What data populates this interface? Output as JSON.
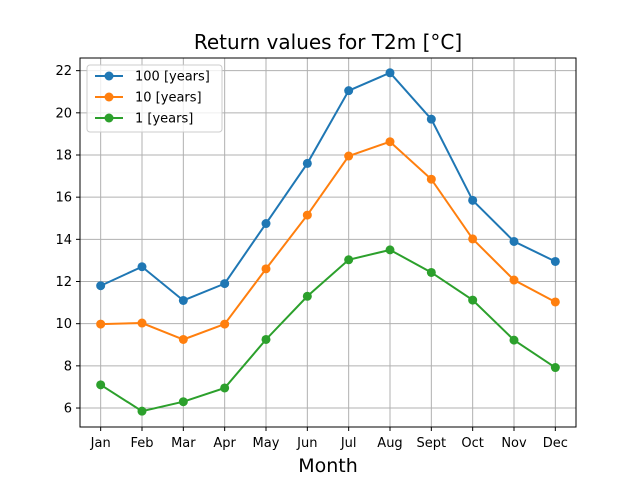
{
  "chart_data": {
    "type": "line",
    "title": "Return values for T2m [°C]",
    "xlabel": "Month",
    "ylabel": "",
    "categories": [
      "Jan",
      "Feb",
      "Mar",
      "Apr",
      "May",
      "Jun",
      "Jul",
      "Aug",
      "Sept",
      "Oct",
      "Nov",
      "Dec"
    ],
    "ylim": [
      5.1,
      22.6
    ],
    "yticks": [
      6,
      8,
      10,
      12,
      14,
      16,
      18,
      20,
      22
    ],
    "grid": true,
    "legend_position": "top-left",
    "series": [
      {
        "name": "100 [years]",
        "color": "#1f77b4",
        "values": [
          11.8,
          12.7,
          11.1,
          11.9,
          14.75,
          17.6,
          21.05,
          21.9,
          19.7,
          15.85,
          13.9,
          12.95
        ]
      },
      {
        "name": "10 [years]",
        "color": "#ff7f0e",
        "values": [
          9.98,
          10.03,
          9.25,
          9.98,
          12.6,
          15.15,
          17.95,
          18.63,
          16.85,
          14.02,
          12.07,
          11.03
        ]
      },
      {
        "name": "1 [years]",
        "color": "#2ca02c",
        "values": [
          7.1,
          5.85,
          6.3,
          6.95,
          9.25,
          11.3,
          13.03,
          13.5,
          12.43,
          11.12,
          9.22,
          7.92
        ]
      }
    ]
  }
}
